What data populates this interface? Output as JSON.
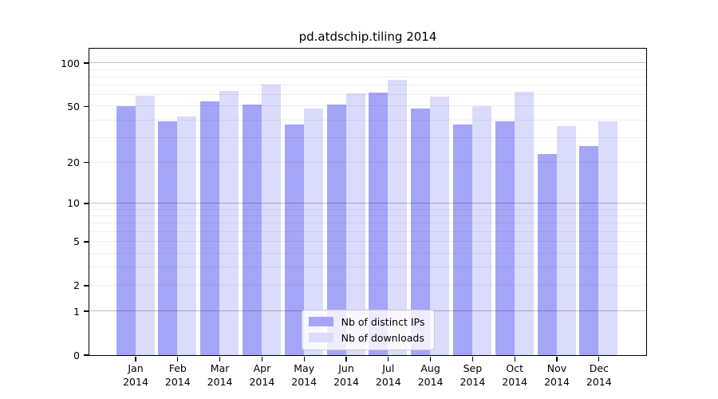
{
  "title": "pd.atdschip.tiling 2014",
  "chart_data": {
    "type": "bar",
    "title": "pd.atdschip.tiling 2014",
    "y_scale": "log1p",
    "ylim": [
      0,
      126
    ],
    "y_ticks": [
      100,
      50,
      20,
      10,
      5,
      2,
      1,
      0
    ],
    "grid": {
      "major": [
        1,
        10,
        100
      ],
      "minor": [
        2,
        3,
        4,
        5,
        6,
        7,
        8,
        9,
        20,
        30,
        40,
        50,
        60,
        70,
        80,
        90
      ]
    },
    "categories": [
      "Jan",
      "Feb",
      "Mar",
      "Apr",
      "May",
      "Jun",
      "Jul",
      "Aug",
      "Sep",
      "Oct",
      "Nov",
      "Dec"
    ],
    "year_label": "2014",
    "series": [
      {
        "name": "Nb of distinct IPs",
        "color": "#a5a5f8",
        "values": [
          50,
          39,
          54,
          51,
          37,
          51,
          62,
          48,
          37,
          39,
          23,
          26
        ]
      },
      {
        "name": "Nb of downloads",
        "color": "#dbdbfc",
        "values": [
          59,
          42,
          64,
          71,
          48,
          61,
          76,
          58,
          50,
          63,
          36,
          39
        ]
      }
    ],
    "legend": {
      "position": "lower center"
    }
  }
}
